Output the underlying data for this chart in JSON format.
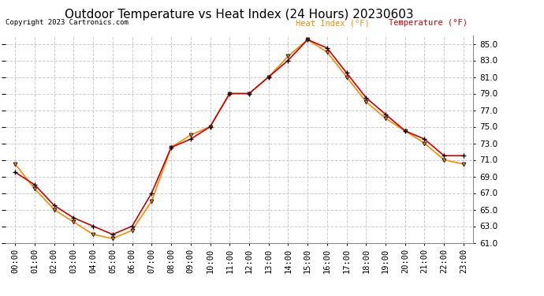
{
  "title": "Outdoor Temperature vs Heat Index (24 Hours) 20230603",
  "copyright": "Copyright 2023 Cartronics.com",
  "legend_heat": "Heat Index (°F)",
  "legend_temp": "Temperature (°F)",
  "hours": [
    "00:00",
    "01:00",
    "02:00",
    "03:00",
    "04:00",
    "05:00",
    "06:00",
    "07:00",
    "08:00",
    "09:00",
    "10:00",
    "11:00",
    "12:00",
    "13:00",
    "14:00",
    "15:00",
    "16:00",
    "17:00",
    "18:00",
    "19:00",
    "20:00",
    "21:00",
    "22:00",
    "23:00"
  ],
  "temperature": [
    69.5,
    68.0,
    65.5,
    64.0,
    63.0,
    62.0,
    63.0,
    67.0,
    72.5,
    73.5,
    75.0,
    79.0,
    79.0,
    81.0,
    83.0,
    85.5,
    84.5,
    81.5,
    78.5,
    76.5,
    74.5,
    73.5,
    71.5,
    71.5
  ],
  "heat_index": [
    70.5,
    67.5,
    65.0,
    63.5,
    62.0,
    61.5,
    62.5,
    66.0,
    72.5,
    74.0,
    75.0,
    79.0,
    79.0,
    81.0,
    83.5,
    85.5,
    84.0,
    81.0,
    78.0,
    76.0,
    74.5,
    73.0,
    71.0,
    70.5
  ],
  "ylim": [
    61.0,
    86.0
  ],
  "yticks": [
    61.0,
    63.0,
    65.0,
    67.0,
    69.0,
    71.0,
    73.0,
    75.0,
    77.0,
    79.0,
    81.0,
    83.0,
    85.0
  ],
  "temp_color": "#cc0000",
  "heat_color": "#ff8800",
  "marker_color": "black",
  "background_color": "#ffffff",
  "grid_color": "#cccccc",
  "title_fontsize": 11,
  "tick_fontsize": 7.5
}
